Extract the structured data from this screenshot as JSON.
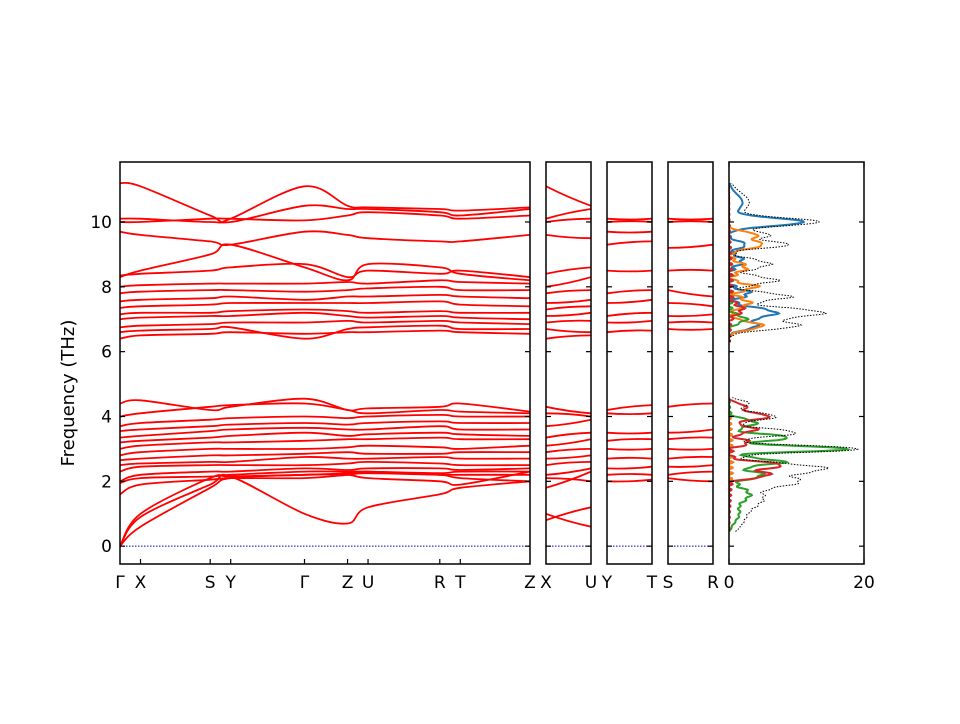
{
  "chart_data": {
    "type": "line",
    "title": "",
    "ylabel": "Frequency (THz)",
    "ylim": [
      -0.55,
      11.85
    ],
    "yticks": [
      0,
      2,
      4,
      6,
      8,
      10
    ],
    "band_color": "#ff0000",
    "zero_line_color": "#0000cc",
    "band_segments": [
      {
        "id": "main",
        "x_range": [
          0,
          1
        ],
        "kpoints": [
          {
            "label": "Γ",
            "x": 0.0
          },
          {
            "label": "X",
            "x": 0.05
          },
          {
            "label": "S",
            "x": 0.22
          },
          {
            "label": "Y",
            "x": 0.27
          },
          {
            "label": "Γ",
            "x": 0.45
          },
          {
            "label": "Z",
            "x": 0.555
          },
          {
            "label": "U",
            "x": 0.605
          },
          {
            "label": "R",
            "x": 0.78
          },
          {
            "label": "T",
            "x": 0.83
          },
          {
            "label": "Z",
            "x": 1.0
          }
        ]
      },
      {
        "id": "xu",
        "x_range": [
          0,
          1
        ],
        "kpoints": [
          {
            "label": "X",
            "x": 0.0
          },
          {
            "label": "U",
            "x": 1.0
          }
        ]
      },
      {
        "id": "yt",
        "x_range": [
          0,
          1
        ],
        "kpoints": [
          {
            "label": "Y",
            "x": 0.0
          },
          {
            "label": "T",
            "x": 1.0
          }
        ]
      },
      {
        "id": "sr",
        "x_range": [
          0,
          1
        ],
        "kpoints": [
          {
            "label": "S",
            "x": 0.0
          },
          {
            "label": "R",
            "x": 1.0
          }
        ]
      }
    ],
    "main_bands": [
      [
        0,
        1.0,
        2.1,
        2.15,
        2.2,
        2.25,
        2.3,
        2.2,
        2.1,
        2.0
      ],
      [
        0,
        0.6,
        1.8,
        2.1,
        2.2,
        2.2,
        2.1,
        2.0,
        1.9,
        2.3
      ],
      [
        0,
        0.9,
        1.9,
        2.15,
        1.0,
        0.7,
        1.2,
        1.6,
        1.8,
        2.0
      ],
      [
        1.6,
        1.9,
        2.05,
        2.1,
        2.1,
        2.2,
        2.25,
        2.2,
        2.2,
        2.2
      ],
      [
        1.95,
        2.1,
        2.15,
        2.2,
        2.3,
        2.3,
        2.3,
        2.25,
        2.3,
        2.3
      ],
      [
        2.0,
        2.2,
        2.3,
        2.3,
        2.4,
        2.35,
        2.4,
        2.4,
        2.35,
        2.4
      ],
      [
        2.3,
        2.45,
        2.5,
        2.5,
        2.5,
        2.55,
        2.6,
        2.55,
        2.5,
        2.5
      ],
      [
        2.5,
        2.55,
        2.6,
        2.6,
        2.75,
        2.7,
        2.7,
        2.75,
        2.7,
        2.7
      ],
      [
        2.65,
        2.7,
        2.8,
        2.8,
        2.85,
        2.9,
        2.85,
        2.85,
        2.9,
        2.9
      ],
      [
        2.8,
        2.9,
        3.0,
        3.0,
        3.0,
        3.05,
        3.1,
        3.05,
        3.0,
        3.1
      ],
      [
        3.0,
        3.1,
        3.2,
        3.2,
        3.25,
        3.3,
        3.3,
        3.35,
        3.3,
        3.3
      ],
      [
        3.2,
        3.25,
        3.35,
        3.4,
        3.5,
        3.4,
        3.45,
        3.5,
        3.45,
        3.4
      ],
      [
        3.35,
        3.4,
        3.55,
        3.6,
        3.65,
        3.6,
        3.6,
        3.7,
        3.6,
        3.6
      ],
      [
        3.55,
        3.6,
        3.7,
        3.75,
        3.8,
        3.75,
        3.8,
        3.85,
        3.8,
        3.8
      ],
      [
        3.7,
        3.8,
        3.9,
        3.95,
        4.0,
        3.95,
        4.0,
        4.05,
        4.0,
        4.0
      ],
      [
        4.0,
        4.1,
        4.3,
        4.35,
        4.4,
        4.2,
        4.1,
        4.2,
        4.15,
        4.1
      ],
      [
        4.4,
        4.5,
        4.2,
        4.3,
        4.55,
        4.2,
        4.25,
        4.3,
        4.4,
        4.15
      ],
      [
        6.4,
        6.5,
        6.55,
        6.6,
        6.55,
        6.6,
        6.6,
        6.65,
        6.6,
        6.55
      ],
      [
        6.6,
        6.65,
        6.7,
        6.75,
        6.4,
        6.7,
        6.75,
        6.8,
        6.7,
        6.7
      ],
      [
        6.75,
        6.8,
        6.85,
        6.9,
        6.9,
        6.95,
        6.9,
        6.95,
        6.9,
        6.85
      ],
      [
        7.0,
        7.05,
        7.1,
        7.1,
        7.2,
        7.1,
        7.05,
        7.1,
        7.05,
        7.0
      ],
      [
        7.15,
        7.2,
        7.2,
        7.25,
        7.3,
        7.25,
        7.2,
        7.25,
        7.2,
        7.2
      ],
      [
        7.35,
        7.4,
        7.45,
        7.5,
        7.5,
        7.5,
        7.5,
        7.55,
        7.45,
        7.4
      ],
      [
        7.55,
        7.6,
        7.65,
        7.7,
        7.6,
        7.7,
        7.7,
        7.75,
        7.7,
        7.65
      ],
      [
        7.8,
        7.85,
        7.9,
        7.9,
        7.85,
        7.9,
        7.95,
        8.0,
        7.9,
        7.9
      ],
      [
        8.0,
        8.05,
        8.1,
        8.1,
        8.1,
        8.15,
        8.1,
        8.2,
        8.15,
        8.1
      ],
      [
        8.35,
        8.4,
        8.5,
        8.6,
        8.7,
        8.3,
        8.5,
        8.4,
        8.5,
        8.3
      ],
      [
        8.3,
        8.5,
        9.0,
        9.3,
        8.6,
        8.2,
        8.7,
        8.6,
        8.4,
        8.2
      ],
      [
        9.7,
        9.6,
        9.4,
        9.3,
        9.7,
        9.6,
        9.5,
        9.4,
        9.4,
        9.6
      ],
      [
        10.0,
        10.0,
        10.1,
        10.1,
        10.05,
        10.2,
        10.3,
        10.2,
        10.1,
        10.2
      ],
      [
        11.2,
        11.1,
        10.2,
        10.0,
        10.5,
        10.4,
        10.4,
        10.3,
        10.2,
        10.4
      ],
      [
        10.1,
        10.1,
        10.0,
        10.1,
        11.1,
        10.5,
        10.45,
        10.4,
        10.35,
        10.45
      ]
    ],
    "short_panel_bands": [
      {
        "id": "xu",
        "bands": [
          [
            1.0,
            0.6
          ],
          [
            0.8,
            1.2
          ],
          [
            1.8,
            2.3
          ],
          [
            2.1,
            2.0
          ],
          [
            2.2,
            2.4
          ],
          [
            2.5,
            2.6
          ],
          [
            2.7,
            2.8
          ],
          [
            2.9,
            3.0
          ],
          [
            3.1,
            3.3
          ],
          [
            3.35,
            3.5
          ],
          [
            3.7,
            3.9
          ],
          [
            4.1,
            4.0
          ],
          [
            4.3,
            4.1
          ],
          [
            6.4,
            6.5
          ],
          [
            6.7,
            6.6
          ],
          [
            6.9,
            6.95
          ],
          [
            7.1,
            7.2
          ],
          [
            7.3,
            7.4
          ],
          [
            7.5,
            7.6
          ],
          [
            7.8,
            7.9
          ],
          [
            8.0,
            8.3
          ],
          [
            8.4,
            8.6
          ],
          [
            9.6,
            9.5
          ],
          [
            10.0,
            10.1
          ],
          [
            11.1,
            10.5
          ],
          [
            10.1,
            10.4
          ]
        ]
      },
      {
        "id": "yt",
        "bands": [
          [
            2.0,
            2.05
          ],
          [
            2.2,
            2.2
          ],
          [
            2.4,
            2.45
          ],
          [
            2.7,
            2.7
          ],
          [
            3.0,
            3.0
          ],
          [
            3.25,
            3.3
          ],
          [
            3.5,
            3.5
          ],
          [
            4.2,
            4.35
          ],
          [
            4.1,
            4.1
          ],
          [
            6.6,
            6.65
          ],
          [
            6.9,
            6.95
          ],
          [
            7.1,
            7.2
          ],
          [
            7.5,
            7.6
          ],
          [
            7.8,
            7.9
          ],
          [
            8.5,
            8.5
          ],
          [
            9.3,
            9.4
          ],
          [
            9.7,
            9.7
          ],
          [
            10.0,
            10.0
          ],
          [
            10.1,
            10.1
          ]
        ]
      },
      {
        "id": "sr",
        "bands": [
          [
            2.1,
            2.0
          ],
          [
            2.2,
            2.3
          ],
          [
            2.45,
            2.5
          ],
          [
            2.7,
            2.75
          ],
          [
            3.0,
            3.0
          ],
          [
            3.3,
            3.35
          ],
          [
            3.5,
            3.6
          ],
          [
            4.3,
            4.4
          ],
          [
            6.7,
            6.7
          ],
          [
            6.9,
            6.9
          ],
          [
            7.1,
            7.15
          ],
          [
            7.5,
            7.4
          ],
          [
            7.9,
            7.7
          ],
          [
            8.5,
            8.5
          ],
          [
            9.2,
            9.3
          ],
          [
            10.0,
            10.0
          ],
          [
            10.1,
            10.1
          ]
        ]
      }
    ],
    "dos": {
      "xlim": [
        0,
        20
      ],
      "xticks": [
        0,
        20
      ],
      "total_color": "#000000",
      "series": [
        {
          "color": "#1f77b4",
          "peaks": [
            [
              10.0,
              11.0,
              0.12
            ],
            [
              7.2,
              7.0,
              0.15
            ],
            [
              6.8,
              4.0,
              0.12
            ],
            [
              7.8,
              3.0,
              0.12
            ],
            [
              8.8,
              2.0,
              0.15
            ],
            [
              9.3,
              2.5,
              0.1
            ],
            [
              10.6,
              2.0,
              0.25
            ]
          ]
        },
        {
          "color": "#ff7f0e",
          "peaks": [
            [
              9.3,
              5.0,
              0.12
            ],
            [
              9.6,
              4.0,
              0.1
            ],
            [
              6.8,
              5.0,
              0.12
            ],
            [
              7.5,
              3.0,
              0.15
            ],
            [
              8.0,
              4.0,
              0.1
            ],
            [
              8.6,
              2.5,
              0.15
            ]
          ]
        },
        {
          "color": "#2ca02c",
          "peaks": [
            [
              3.0,
              18.0,
              0.08
            ],
            [
              3.35,
              9.0,
              0.1
            ],
            [
              2.6,
              8.0,
              0.1
            ],
            [
              2.2,
              5.0,
              0.12
            ],
            [
              1.6,
              3.0,
              0.2
            ],
            [
              3.8,
              4.0,
              0.12
            ],
            [
              7.0,
              2.5,
              0.12
            ],
            [
              1.0,
              1.5,
              0.25
            ]
          ]
        },
        {
          "color": "#d62728",
          "peaks": [
            [
              2.5,
              8.0,
              0.1
            ],
            [
              2.2,
              6.0,
              0.1
            ],
            [
              4.0,
              6.0,
              0.1
            ],
            [
              3.6,
              4.0,
              0.1
            ],
            [
              3.2,
              3.0,
              0.1
            ],
            [
              4.3,
              2.5,
              0.1
            ],
            [
              7.3,
              2.0,
              0.15
            ]
          ]
        }
      ],
      "total_peaks": [
        [
          3.0,
          19.5,
          0.1
        ],
        [
          2.4,
          14.0,
          0.15
        ],
        [
          2.0,
          9.0,
          0.15
        ],
        [
          3.5,
          10.0,
          0.12
        ],
        [
          4.0,
          7.0,
          0.12
        ],
        [
          1.5,
          5.0,
          0.3
        ],
        [
          0.8,
          2.0,
          0.3
        ],
        [
          4.4,
          3.0,
          0.1
        ],
        [
          7.2,
          14.0,
          0.15
        ],
        [
          6.8,
          10.0,
          0.12
        ],
        [
          7.7,
          9.0,
          0.12
        ],
        [
          8.2,
          7.0,
          0.12
        ],
        [
          8.7,
          6.0,
          0.15
        ],
        [
          9.3,
          9.0,
          0.1
        ],
        [
          9.6,
          6.0,
          0.1
        ],
        [
          10.0,
          13.0,
          0.12
        ],
        [
          10.6,
          3.0,
          0.3
        ]
      ]
    }
  }
}
